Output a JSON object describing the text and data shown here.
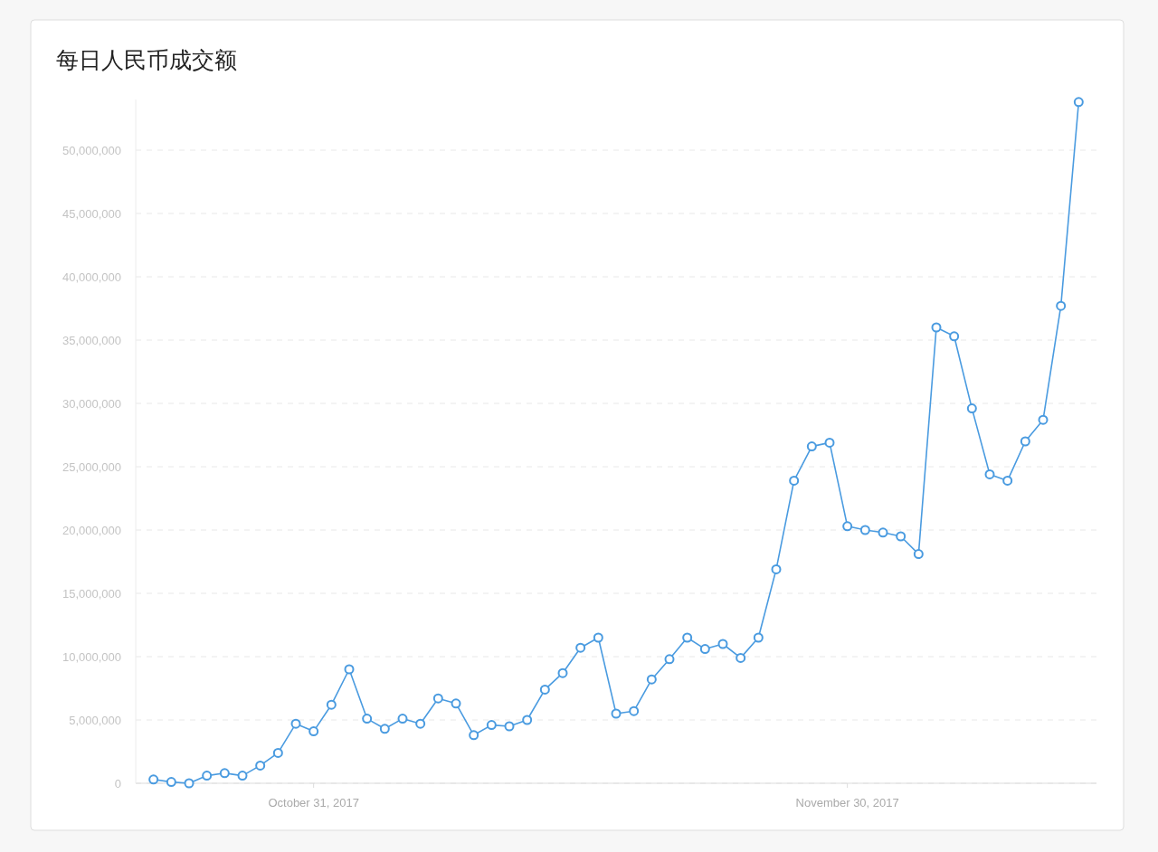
{
  "chart_data": {
    "type": "line",
    "title": "每日人民币成交额",
    "x": [
      "2017-10-22",
      "2017-10-23",
      "2017-10-24",
      "2017-10-25",
      "2017-10-26",
      "2017-10-27",
      "2017-10-28",
      "2017-10-29",
      "2017-10-30",
      "2017-10-31",
      "2017-11-01",
      "2017-11-02",
      "2017-11-03",
      "2017-11-04",
      "2017-11-05",
      "2017-11-06",
      "2017-11-07",
      "2017-11-08",
      "2017-11-09",
      "2017-11-10",
      "2017-11-11",
      "2017-11-12",
      "2017-11-13",
      "2017-11-14",
      "2017-11-15",
      "2017-11-16",
      "2017-11-17",
      "2017-11-18",
      "2017-11-19",
      "2017-11-20",
      "2017-11-21",
      "2017-11-22",
      "2017-11-23",
      "2017-11-24",
      "2017-11-25",
      "2017-11-26",
      "2017-11-27",
      "2017-11-28",
      "2017-11-29",
      "2017-11-30",
      "2017-12-01",
      "2017-12-02",
      "2017-12-03",
      "2017-12-04",
      "2017-12-05",
      "2017-12-06",
      "2017-12-07",
      "2017-12-08",
      "2017-12-09",
      "2017-12-10",
      "2017-12-11",
      "2017-12-12",
      "2017-12-13"
    ],
    "series": [
      {
        "color": "#4a9be0",
        "values": [
          300000,
          100000,
          0,
          600000,
          800000,
          600000,
          1400000,
          2400000,
          4700000,
          4100000,
          6200000,
          9000000,
          5100000,
          4300000,
          5100000,
          4700000,
          6700000,
          6300000,
          3800000,
          4600000,
          4500000,
          5000000,
          7400000,
          8700000,
          10700000,
          11500000,
          5500000,
          5700000,
          8200000,
          9800000,
          11500000,
          10600000,
          11000000,
          9900000,
          11500000,
          16900000,
          23900000,
          26600000,
          26900000,
          20300000,
          20000000,
          19800000,
          19500000,
          18100000,
          36000000,
          35300000,
          29600000,
          24400000,
          23900000,
          27000000,
          28700000,
          37700000,
          53800000
        ]
      }
    ],
    "xlim": [
      "2017-10-21",
      "2017-12-14"
    ],
    "xticks": [
      {
        "value": "2017-10-31",
        "label": "October 31, 2017"
      },
      {
        "value": "2017-11-30",
        "label": "November 30, 2017"
      }
    ],
    "ylim": [
      0,
      54000000
    ],
    "yticks": [
      0,
      {
        "value": 5000000,
        "label": "5,000,000"
      },
      {
        "value": 10000000,
        "label": "10,000,000"
      },
      {
        "value": 15000000,
        "label": "15,000,000"
      },
      {
        "value": 20000000,
        "label": "20,000,000"
      },
      {
        "value": 25000000,
        "label": "25,000,000"
      },
      {
        "value": 30000000,
        "label": "30,000,000"
      },
      {
        "value": 35000000,
        "label": "35,000,000"
      },
      {
        "value": 40000000,
        "label": "40,000,000"
      },
      {
        "value": 45000000,
        "label": "45,000,000"
      },
      {
        "value": 50000000,
        "label": "50,000,000"
      }
    ],
    "grid": "y",
    "marker": "circle",
    "line_style": "solid"
  }
}
